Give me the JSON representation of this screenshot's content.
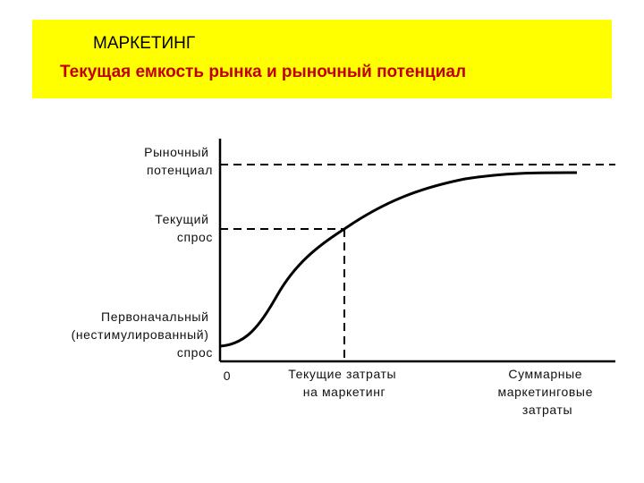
{
  "header": {
    "title": "МАРКЕТИНГ",
    "subtitle": "Текущая емкость рынка и рыночный потенциал",
    "background_color": "#ffff00",
    "subtitle_color": "#c00000"
  },
  "diagram": {
    "y_labels": {
      "market_potential": [
        "Рыночный",
        "потенциал"
      ],
      "current_demand": [
        "Текущий",
        "спрос"
      ],
      "primary_demand": [
        "Первоначальный",
        "(нестимулированный)",
        "спрос"
      ]
    },
    "x_labels": {
      "origin": "0",
      "current_spending": [
        "Текущие затраты",
        "на маркетинг"
      ],
      "total_spending": [
        "Суммарные",
        "маркетинговые",
        "затраты"
      ]
    },
    "curve_color": "#000000"
  }
}
